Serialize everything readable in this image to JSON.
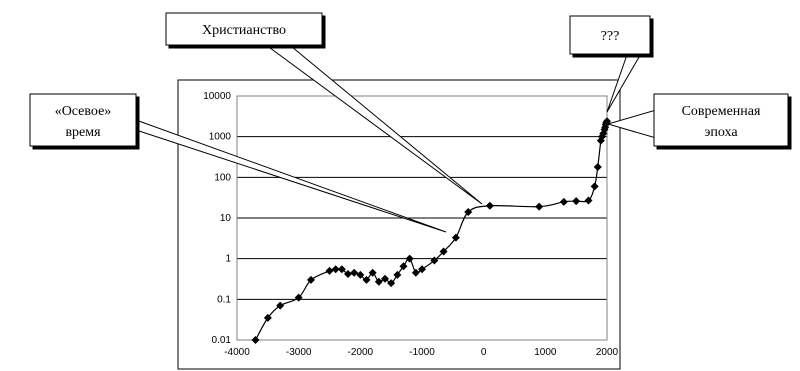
{
  "chart_data": {
    "type": "line",
    "x_ticks": [
      -4000,
      -3000,
      -2000,
      -1000,
      0,
      1000,
      2000
    ],
    "y_ticks": [
      "0.01",
      "0.1",
      "1",
      "10",
      "100",
      "1000",
      "10000"
    ],
    "xlim": [
      -4000,
      2000
    ],
    "ylim": [
      0.01,
      10000
    ],
    "y_scale": "log",
    "grid": "horizontal",
    "legend": "none",
    "series": [
      {
        "color": "#000000",
        "marker": "diamond",
        "points": [
          [
            -3700,
            0.01
          ],
          [
            -3500,
            0.035
          ],
          [
            -3300,
            0.07
          ],
          [
            -3000,
            0.11
          ],
          [
            -2800,
            0.3
          ],
          [
            -2500,
            0.5
          ],
          [
            -2400,
            0.55
          ],
          [
            -2300,
            0.55
          ],
          [
            -2200,
            0.42
          ],
          [
            -2100,
            0.45
          ],
          [
            -2000,
            0.4
          ],
          [
            -1900,
            0.3
          ],
          [
            -1800,
            0.45
          ],
          [
            -1700,
            0.27
          ],
          [
            -1600,
            0.32
          ],
          [
            -1500,
            0.25
          ],
          [
            -1400,
            0.4
          ],
          [
            -1300,
            0.65
          ],
          [
            -1200,
            1.0
          ],
          [
            -1100,
            0.45
          ],
          [
            -1000,
            0.55
          ],
          [
            -800,
            0.9
          ],
          [
            -650,
            1.5
          ],
          [
            -450,
            3.3
          ],
          [
            -250,
            14
          ],
          [
            100,
            20
          ],
          [
            900,
            19
          ],
          [
            1300,
            25
          ],
          [
            1500,
            26
          ],
          [
            1700,
            27
          ],
          [
            1800,
            60
          ],
          [
            1850,
            180
          ],
          [
            1900,
            800
          ],
          [
            1920,
            1000
          ],
          [
            1940,
            1200
          ],
          [
            1960,
            1500
          ],
          [
            1970,
            1700
          ],
          [
            1980,
            2000
          ],
          [
            1990,
            2200
          ],
          [
            2000,
            2400
          ]
        ]
      }
    ],
    "annotations": [
      {
        "id": "christianity",
        "lines": [
          "Христианство"
        ]
      },
      {
        "id": "axial",
        "lines": [
          "«Осевое»",
          "время"
        ]
      },
      {
        "id": "unknown",
        "lines": [
          "???"
        ]
      },
      {
        "id": "modern",
        "lines": [
          "Современная",
          "эпоха"
        ]
      }
    ]
  }
}
